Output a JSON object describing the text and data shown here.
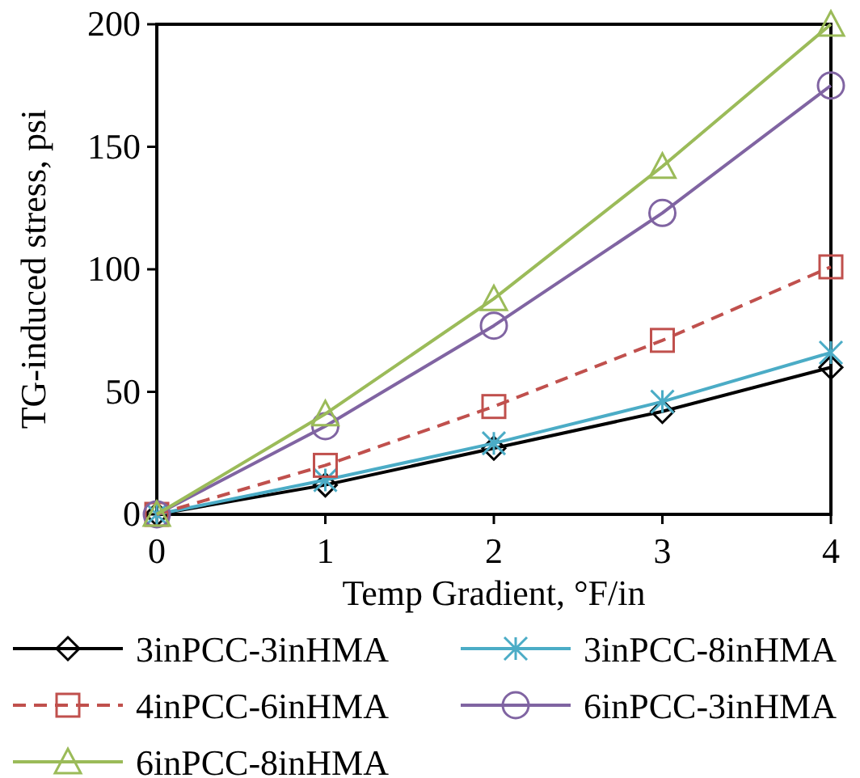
{
  "chart_data": {
    "type": "line",
    "xlabel": "Temp Gradient, °F/in",
    "ylabel": "TG-induced stress, psi",
    "x": [
      0,
      1,
      2,
      3,
      4
    ],
    "xlim": [
      0,
      4
    ],
    "xticks": [
      0,
      1,
      2,
      3,
      4
    ],
    "ylim": [
      0,
      200
    ],
    "yticks": [
      0,
      50,
      100,
      150,
      200
    ],
    "grid": false,
    "legend": "bottom",
    "series": [
      {
        "name": "3inPCC-3inHMA",
        "color": "#000000",
        "marker": "diamond",
        "line_style": "solid",
        "values": [
          0,
          12,
          27,
          42,
          60
        ]
      },
      {
        "name": "3inPCC-8inHMA",
        "color": "#4bacc6",
        "marker": "cross",
        "line_style": "solid",
        "values": [
          0,
          14,
          29,
          46,
          66
        ]
      },
      {
        "name": "4inPCC-6inHMA",
        "color": "#c0504d",
        "marker": "square",
        "line_style": "dashed",
        "values": [
          0,
          20,
          44,
          71,
          101
        ]
      },
      {
        "name": "6inPCC-3inHMA",
        "color": "#8064a2",
        "marker": "circle",
        "line_style": "solid",
        "values": [
          0,
          36,
          77,
          123,
          175
        ]
      },
      {
        "name": "6inPCC-8inHMA",
        "color": "#9bbb59",
        "marker": "triangle",
        "line_style": "solid",
        "values": [
          0,
          41,
          88,
          142,
          200
        ]
      }
    ]
  }
}
